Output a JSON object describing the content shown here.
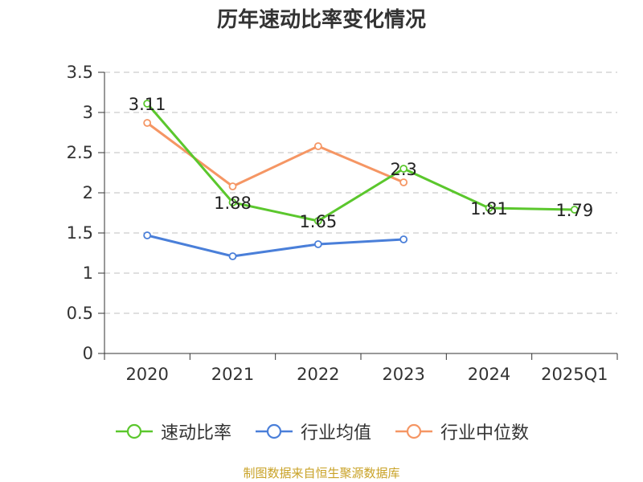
{
  "title": "历年速动比率变化情况",
  "source": "制图数据来自恒生聚源数据库",
  "colors": {
    "quick_ratio": "#5bc72d",
    "industry_mean": "#4a7fd9",
    "industry_median": "#f59664",
    "grid": "#cccccc",
    "axis": "#333333"
  },
  "chart_data": {
    "type": "line",
    "title": "历年速动比率变化情况",
    "categories": [
      "2020",
      "2021",
      "2022",
      "2023",
      "2024",
      "2025Q1"
    ],
    "ylim": [
      0,
      3.5
    ],
    "yticks": [
      "0",
      "0.5",
      "1",
      "1.5",
      "2",
      "2.5",
      "3",
      "3.5"
    ],
    "grid": "horizontal-dashed",
    "legend_position": "bottom",
    "series": [
      {
        "name": "速动比率",
        "color_key": "quick_ratio",
        "values": [
          3.11,
          1.88,
          1.65,
          2.3,
          1.81,
          1.79
        ],
        "labels": [
          "3.11",
          "1.88",
          "1.65",
          "2.3",
          "1.81",
          "1.79"
        ]
      },
      {
        "name": "行业均值",
        "color_key": "industry_mean",
        "values": [
          1.47,
          1.21,
          1.36,
          1.42,
          null,
          null
        ]
      },
      {
        "name": "行业中位数",
        "color_key": "industry_median",
        "values": [
          2.87,
          2.08,
          2.58,
          2.13,
          null,
          null
        ]
      }
    ]
  }
}
